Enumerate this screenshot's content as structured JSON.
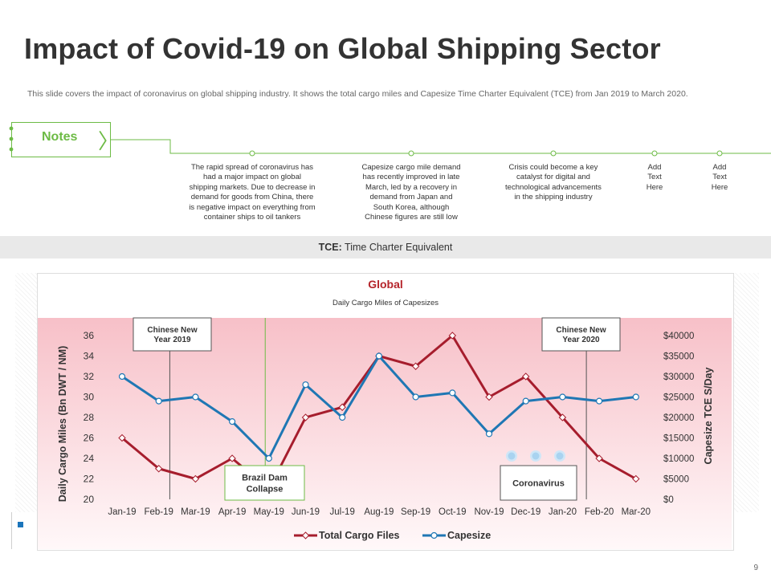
{
  "slide": {
    "title": "Impact of Covid-19 on Global Shipping Sector",
    "description": "This slide covers the impact of coronavirus on global shipping industry. It shows the total cargo miles and Capesize Time Charter Equivalent (TCE) from Jan 2019 to March 2020.",
    "notes_label": "Notes",
    "page_number": "9"
  },
  "notes": [
    {
      "lines": [
        "The rapid spread of coronavirus has",
        "had a major impact on global",
        "shipping markets. Due to decrease in",
        "demand  for goods from China, there",
        "is negative impact on everything from",
        "container ships to oil tankers"
      ]
    },
    {
      "lines": [
        "Capesize cargo mile demand",
        "has recently improved in late",
        "March, led by a recovery in",
        "demand  from Japan and",
        "South Korea, although",
        "Chinese  figures are still low"
      ]
    },
    {
      "lines": [
        "Crisis could become a key",
        "catalyst for digital and",
        "technological advancements",
        "in the shipping industry"
      ]
    },
    {
      "lines": [
        "Add",
        "Text",
        "Here"
      ]
    },
    {
      "lines": [
        "Add",
        "Text",
        "Here"
      ]
    }
  ],
  "tce_band": {
    "label": "TCE:",
    "text": " Time Charter Equivalent"
  },
  "chart_data": {
    "type": "line",
    "title": "Global",
    "subtitle": "Daily Cargo Miles of Capesizes",
    "categories": [
      "Jan-19",
      "Feb-19",
      "Mar-19",
      "Apr-19",
      "May-19",
      "Jun-19",
      "Jul-19",
      "Aug-19",
      "Sep-19",
      "Oct-19",
      "Nov-19",
      "Dec-19",
      "Jan-20",
      "Feb-20",
      "Mar-20"
    ],
    "series": [
      {
        "name": "Total Cargo Files",
        "axis": "left",
        "color": "#a61d2d",
        "marker": "diamond",
        "values": [
          26,
          23,
          22,
          24,
          21,
          28,
          29,
          34,
          33,
          36,
          30,
          32,
          28,
          24,
          22
        ]
      },
      {
        "name": "Capesize",
        "axis": "right",
        "color": "#1f77b4",
        "marker": "circle",
        "values": [
          30000,
          24000,
          25000,
          19000,
          10000,
          28000,
          20000,
          35000,
          25000,
          26000,
          16000,
          24000,
          25000,
          24000,
          25000
        ]
      }
    ],
    "ylabel": "Daily Cargo Miles (Bn DWT / NM)",
    "y2label": "Capesize TCE S/Day",
    "ylim": [
      20,
      36
    ],
    "yticks": [
      "36",
      "34",
      "32",
      "30",
      "28",
      "26",
      "24",
      "22",
      "20"
    ],
    "y2lim": [
      0,
      40000
    ],
    "y2ticks": [
      "$40000",
      "$35000",
      "$30000",
      "$25000",
      "$20000",
      "$15000",
      "$10000",
      "$5000",
      "$0"
    ],
    "legend_position": "bottom",
    "annotations": [
      {
        "text_lines": [
          "Chinese New",
          "Year 2019"
        ]
      },
      {
        "text_lines": [
          "Chinese New",
          "Year 2020"
        ]
      },
      {
        "text_lines": [
          "Brazil Dam",
          "Collapse"
        ]
      },
      {
        "text_lines": [
          "Coronavirus"
        ]
      }
    ]
  },
  "colors": {
    "accent_green": "#6dbb45",
    "cargo_red": "#a61d2d",
    "capesize_blue": "#1f77b4",
    "plot_gradient_top": "#f7c0c8"
  }
}
